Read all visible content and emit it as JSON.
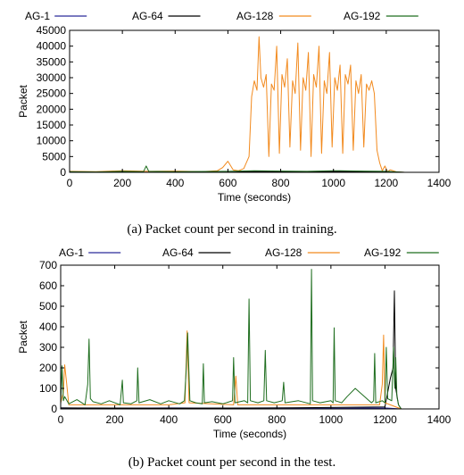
{
  "chart_data": [
    {
      "type": "line",
      "caption": "(a) Packet count per second in training.",
      "xlabel": "Time (seconds)",
      "ylabel": "Packet",
      "xlim": [
        0,
        1400
      ],
      "ylim": [
        0,
        45000
      ],
      "xticks": [
        0,
        200,
        400,
        600,
        800,
        1000,
        1200,
        1400
      ],
      "yticks": [
        0,
        5000,
        10000,
        15000,
        20000,
        25000,
        30000,
        35000,
        40000,
        45000
      ],
      "legend_position": "top",
      "series": [
        {
          "name": "AG-1",
          "color": "#2a2a9a",
          "x": [
            0,
            200,
            400,
            600,
            800,
            1000,
            1200,
            1270
          ],
          "y": [
            50,
            30,
            40,
            30,
            60,
            40,
            50,
            0
          ]
        },
        {
          "name": "AG-64",
          "color": "#000000",
          "x": [
            0,
            300,
            600,
            720,
            900,
            1100,
            1270
          ],
          "y": [
            20,
            30,
            20,
            300,
            200,
            300,
            0
          ]
        },
        {
          "name": "AG-128",
          "color": "#f28a1e",
          "x": [
            0,
            100,
            200,
            300,
            400,
            500,
            560,
            580,
            600,
            620,
            640,
            660,
            680,
            690,
            700,
            710,
            718,
            725,
            735,
            745,
            755,
            765,
            775,
            785,
            795,
            805,
            815,
            825,
            835,
            845,
            855,
            865,
            875,
            885,
            895,
            905,
            915,
            925,
            935,
            945,
            955,
            965,
            975,
            985,
            995,
            1005,
            1015,
            1025,
            1035,
            1045,
            1055,
            1065,
            1075,
            1085,
            1095,
            1105,
            1115,
            1125,
            1135,
            1145,
            1155,
            1165,
            1175,
            1185,
            1195,
            1205,
            1215,
            1240,
            1270
          ],
          "y": [
            300,
            200,
            500,
            300,
            400,
            200,
            500,
            1500,
            3500,
            800,
            500,
            1200,
            5000,
            24000,
            29000,
            26000,
            43000,
            30000,
            27000,
            31000,
            5000,
            28000,
            26000,
            40000,
            6000,
            31000,
            27000,
            36000,
            8000,
            29000,
            25000,
            41000,
            7000,
            30000,
            26000,
            38000,
            5000,
            31000,
            27000,
            40000,
            6000,
            29000,
            25000,
            38000,
            8000,
            30000,
            26000,
            34000,
            6000,
            31000,
            28000,
            34000,
            7000,
            29000,
            25000,
            31000,
            8000,
            28000,
            26000,
            29000,
            25000,
            7000,
            3000,
            500,
            2000,
            200,
            800,
            100,
            0
          ]
        },
        {
          "name": "AG-192",
          "color": "#1f6e1f",
          "x": [
            0,
            100,
            200,
            280,
            290,
            300,
            400,
            600,
            700,
            800,
            900,
            1000,
            1100,
            1200,
            1270
          ],
          "y": [
            200,
            100,
            300,
            200,
            2000,
            300,
            200,
            300,
            500,
            400,
            300,
            500,
            400,
            300,
            0
          ]
        }
      ]
    },
    {
      "type": "line",
      "caption": "(b) Packet count per second in the test.",
      "xlabel": "Time (seconds)",
      "ylabel": "Packet",
      "xlim": [
        0,
        1400
      ],
      "ylim": [
        0,
        700
      ],
      "xticks": [
        0,
        200,
        400,
        600,
        800,
        1000,
        1200,
        1400
      ],
      "yticks": [
        0,
        100,
        200,
        300,
        400,
        500,
        600,
        700
      ],
      "legend_position": "top",
      "series": [
        {
          "name": "AG-1",
          "color": "#2a2a9a",
          "x": [
            0,
            200,
            400,
            600,
            800,
            1000,
            1200,
            1260
          ],
          "y": [
            5,
            3,
            5,
            4,
            5,
            3,
            5,
            0
          ]
        },
        {
          "name": "AG-64",
          "color": "#000000",
          "x": [
            0,
            400,
            800,
            1200,
            1220,
            1230,
            1235,
            1240,
            1250,
            1260
          ],
          "y": [
            5,
            4,
            5,
            10,
            150,
            200,
            575,
            100,
            20,
            0
          ]
        },
        {
          "name": "AG-128",
          "color": "#f28a1e",
          "x": [
            0,
            10,
            15,
            20,
            30,
            400,
            460,
            468,
            475,
            640,
            648,
            655,
            1180,
            1190,
            1195,
            1200,
            1260
          ],
          "y": [
            30,
            80,
            215,
            150,
            20,
            20,
            30,
            380,
            30,
            20,
            160,
            20,
            20,
            120,
            360,
            30,
            0
          ]
        },
        {
          "name": "AG-192",
          "color": "#1f6e1f",
          "x": [
            0,
            5,
            10,
            15,
            30,
            60,
            90,
            100,
            105,
            110,
            120,
            150,
            180,
            220,
            228,
            232,
            260,
            282,
            285,
            290,
            330,
            370,
            400,
            440,
            458,
            465,
            470,
            478,
            500,
            524,
            528,
            532,
            560,
            600,
            636,
            640,
            645,
            680,
            692,
            697,
            702,
            730,
            752,
            757,
            762,
            790,
            820,
            825,
            830,
            880,
            924,
            928,
            932,
            960,
            1000,
            1008,
            1012,
            1016,
            1040,
            1060,
            1090,
            1150,
            1158,
            1162,
            1166,
            1190,
            1200,
            1205,
            1210,
            1225,
            1232,
            1236,
            1240,
            1244,
            1250,
            1260
          ],
          "y": [
            20,
            210,
            40,
            60,
            25,
            45,
            20,
            120,
            340,
            50,
            35,
            25,
            40,
            20,
            140,
            30,
            25,
            40,
            200,
            30,
            45,
            25,
            40,
            25,
            40,
            200,
            370,
            40,
            30,
            25,
            220,
            30,
            35,
            25,
            40,
            250,
            30,
            40,
            30,
            535,
            40,
            30,
            40,
            285,
            40,
            30,
            40,
            130,
            30,
            40,
            25,
            680,
            40,
            30,
            40,
            30,
            395,
            40,
            30,
            60,
            100,
            30,
            40,
            270,
            30,
            40,
            30,
            300,
            50,
            40,
            300,
            100,
            250,
            60,
            20,
            0
          ]
        }
      ]
    }
  ]
}
